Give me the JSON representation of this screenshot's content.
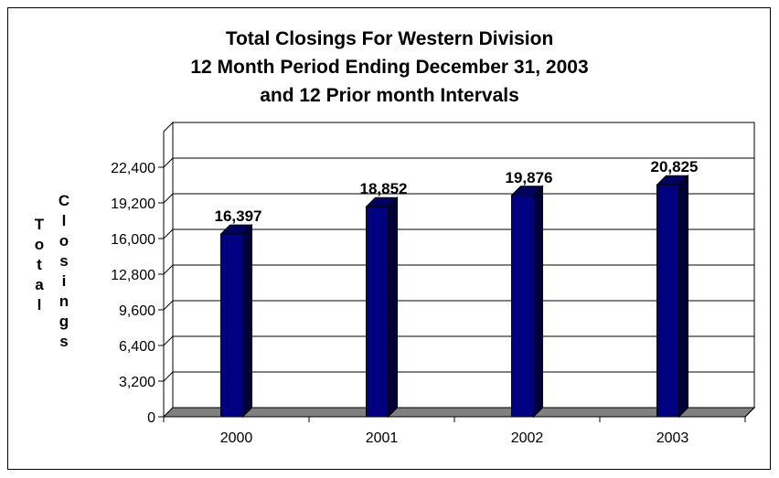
{
  "chart_data": {
    "type": "bar",
    "title_lines": [
      "Total Closings For Western Division",
      "12 Month Period Ending December 31, 2003",
      "and 12 Prior month Intervals"
    ],
    "categories": [
      "2000",
      "2001",
      "2002",
      "2003"
    ],
    "values": [
      16397,
      18852,
      19876,
      20825
    ],
    "data_labels": [
      "16,397",
      "18,852",
      "19,876",
      "20,825"
    ],
    "yticks": [
      0,
      3200,
      6400,
      9600,
      12800,
      16000,
      19200,
      22400
    ],
    "ytick_labels": [
      "0",
      "3,200",
      "6,400",
      "9,600",
      "12,800",
      "16,000",
      "19,200",
      "22,400"
    ],
    "ylim": [
      0,
      25600
    ],
    "ylabel_words": [
      "Total",
      "Closings"
    ],
    "xlabel": "",
    "grid": true,
    "legend": false,
    "bar_color": "#000080",
    "floor_color": "#808080"
  }
}
